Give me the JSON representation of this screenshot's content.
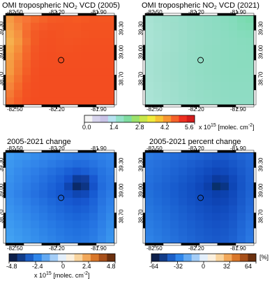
{
  "colors": {
    "frame": "#000000",
    "no2_map_2005": "#ff4f1f",
    "no2_map_2021": "#8fdcc0",
    "change_base": "#2f86ea",
    "pct_base": "#2b6fd8"
  },
  "panels": [
    {
      "title_pre": "OMI tropospheric NO",
      "title_sub": "2",
      "title_post": " VCD (2005)",
      "lon_ticks": [
        "-82.50",
        "-82.20",
        "-81.90"
      ],
      "lat_ticks": [
        "39.30",
        "39.00",
        "38.70"
      ]
    },
    {
      "title_pre": "OMI tropospheric NO",
      "title_sub": "2",
      "title_post": " VCD (2021)",
      "lon_ticks": [
        "-82.50",
        "-82.20",
        "-81.90"
      ],
      "lat_ticks": [
        "39.30",
        "39.00",
        "38.70"
      ]
    },
    {
      "title_pre": "2005-2021 change",
      "title_sub": "",
      "title_post": "",
      "lon_ticks": [
        "-82.50",
        "-82.20",
        "-81.90"
      ],
      "lat_ticks": [
        "39.30",
        "39.00",
        "38.70"
      ]
    },
    {
      "title_pre": "2005-2021 percent change",
      "title_sub": "",
      "title_post": "",
      "lon_ticks": [
        "-82.50",
        "-82.20",
        "-81.90"
      ],
      "lat_ticks": [
        "39.30",
        "39.00",
        "38.70"
      ]
    }
  ],
  "colorbars": {
    "vcd": {
      "ticks": [
        "0.0",
        "1.4",
        "2.8",
        "4.2",
        "5.6"
      ],
      "unit_pre": "x 10",
      "unit_exp": "15",
      "unit_mid": " [molec. cm",
      "unit_exp2": "-2",
      "unit_post": "]",
      "colors": [
        "#f5f5f5",
        "#d6d3ec",
        "#c8c2e6",
        "#b6e2f0",
        "#93e1c8",
        "#7fdca0",
        "#9be26b",
        "#c7e64a",
        "#f1ea3c",
        "#f7c232",
        "#f79532",
        "#f5622a",
        "#ee3020",
        "#d21c1c"
      ]
    },
    "change": {
      "ticks": [
        "-4.8",
        "-2.4",
        "0",
        "2.4",
        "4.8"
      ],
      "unit_pre": "x 10",
      "unit_exp": "15",
      "unit_mid": " [molec. cm",
      "unit_exp2": "-2",
      "unit_post": "]",
      "colors": [
        "#0d1f4a",
        "#123c88",
        "#1b5fc7",
        "#2f86ea",
        "#63a9f2",
        "#a4cdf7",
        "#e3effb",
        "#fbf0de",
        "#f9d49e",
        "#f2a85a",
        "#d9772a",
        "#a8501a",
        "#6b300e"
      ]
    },
    "pct": {
      "ticks": [
        "-64",
        "-32",
        "0",
        "32",
        "64"
      ],
      "unit": "[%]",
      "colors": [
        "#0d1f4a",
        "#123c88",
        "#1b5fc7",
        "#2f86ea",
        "#63a9f2",
        "#a4cdf7",
        "#e3effb",
        "#fbf0de",
        "#f9d49e",
        "#f2a85a",
        "#d9772a",
        "#a8501a",
        "#6b300e"
      ]
    }
  },
  "maps": {
    "vcd_2005": [
      [
        "#f59a44",
        "#f5823a",
        "#f77536",
        "#f56a2c",
        "#f46228",
        "#f45a24",
        "#f45824",
        "#f45722",
        "#f55922",
        "#f45722",
        "#f35421",
        "#f35521",
        "#f35521"
      ],
      [
        "#f5a048",
        "#f58a3d",
        "#f66f30",
        "#f45f28",
        "#f45826",
        "#f35423",
        "#f35422",
        "#f45522",
        "#f45522",
        "#f35321",
        "#f35321",
        "#f35321",
        "#f35321"
      ],
      [
        "#f6a84a",
        "#f59240",
        "#f46c2e",
        "#f35a25",
        "#f35323",
        "#f35121",
        "#f35322",
        "#f35522",
        "#f35522",
        "#f35321",
        "#f35220",
        "#f35220",
        "#f35220"
      ],
      [
        "#f6b04e",
        "#f5983f",
        "#f4722f",
        "#f35a24",
        "#f35122",
        "#f35021",
        "#f35221",
        "#f35322",
        "#f35221",
        "#f35120",
        "#f35020",
        "#f35020",
        "#f35020"
      ],
      [
        "#f6a846",
        "#f58e3a",
        "#f46a2c",
        "#f35624",
        "#f35022",
        "#f34f21",
        "#f35121",
        "#f35121",
        "#f35020",
        "#f34f20",
        "#f34f20",
        "#f34f20",
        "#f34f20"
      ],
      [
        "#f5a044",
        "#f58536",
        "#f4662a",
        "#f35423",
        "#f34f21",
        "#f34e20",
        "#f34f20",
        "#f34f20",
        "#f34f20",
        "#f34e20",
        "#f34e20",
        "#f34e20",
        "#f34e20"
      ],
      [
        "#f59c42",
        "#f47e33",
        "#f46228",
        "#f35223",
        "#f34e21",
        "#f34e20",
        "#f34e20",
        "#f34e20",
        "#f34e20",
        "#f34e20",
        "#f34e20",
        "#f34e20",
        "#f34e20"
      ],
      [
        "#f59a40",
        "#f47a31",
        "#f45e26",
        "#f35022",
        "#f34d20",
        "#f34d20",
        "#f34d20",
        "#f34d20",
        "#f34d20",
        "#f34d20",
        "#f34d20",
        "#f34d20",
        "#f34d20"
      ],
      [
        "#f58e3a",
        "#f4722e",
        "#f35824",
        "#f34f21",
        "#f34d20",
        "#f34d20",
        "#f34d20",
        "#f34d20",
        "#f34d20",
        "#f34d20",
        "#f34d20",
        "#f34d20",
        "#f34d20"
      ],
      [
        "#f5843a",
        "#f46a2a",
        "#f35423",
        "#f34e21",
        "#f34d20",
        "#f34d20",
        "#f34d20",
        "#f34d20",
        "#f34d20",
        "#f34d20",
        "#f34d20",
        "#f34d20",
        "#f34d20"
      ],
      [
        "#f47a34",
        "#f46228",
        "#f35222",
        "#f34e21",
        "#f34d20",
        "#f34d20",
        "#f34d20",
        "#f34d20",
        "#f34d20",
        "#f34d20",
        "#f34d20",
        "#f34d20",
        "#f34d20"
      ],
      [
        "#f47030",
        "#f45c26",
        "#f35022",
        "#f34d20",
        "#f34d20",
        "#f34d20",
        "#f34d20",
        "#f34d20",
        "#f34d20",
        "#f34d20",
        "#f34d20",
        "#f34d20",
        "#f34d20"
      ]
    ],
    "vcd_2021": [
      [
        "#a8e2d3",
        "#a2e0cf",
        "#9fdfcd",
        "#9cdfcb",
        "#98deca",
        "#94ddc7",
        "#92ddc6",
        "#8fdcc4",
        "#8cdcc2",
        "#88dcbf",
        "#84dcbc",
        "#7ddbb4",
        "#78dbae"
      ],
      [
        "#a9e3d4",
        "#a4e1d0",
        "#a0dfcd",
        "#9ddecb",
        "#99deca",
        "#95ddc7",
        "#93ddc5",
        "#90dcc4",
        "#8ddcc2",
        "#8adcc0",
        "#86dcbd",
        "#80dbb7",
        "#7edbb4"
      ],
      [
        "#a9e3d4",
        "#a5e1d1",
        "#a1e0cf",
        "#9edfcc",
        "#9adeca",
        "#96ddc8",
        "#93ddc6",
        "#90dcc4",
        "#8edcc3",
        "#8bdcc1",
        "#88dcbf",
        "#85dcbc",
        "#83dcba"
      ],
      [
        "#aae3d5",
        "#a5e1d2",
        "#a1e0cf",
        "#9edfcc",
        "#9adeca",
        "#96ddc8",
        "#93ddc6",
        "#91dcc4",
        "#8fdcc3",
        "#8cdcc1",
        "#8adcc0",
        "#88dcbe",
        "#87dcbd"
      ],
      [
        "#a9e3d4",
        "#a5e1d1",
        "#a1e0ce",
        "#9edfcc",
        "#9adeca",
        "#96ddc7",
        "#93ddc5",
        "#90dcc3",
        "#8edcc2",
        "#8cdcc1",
        "#8adcc0",
        "#89dcbf",
        "#88dcbe"
      ],
      [
        "#a8e2d3",
        "#a4e1d0",
        "#a0dfcd",
        "#9ddecb",
        "#99deca",
        "#95ddc7",
        "#92ddc5",
        "#90dcc3",
        "#8edcc2",
        "#8cdcc1",
        "#8adcc0",
        "#8adcbf",
        "#89dcbf"
      ],
      [
        "#a7e2d3",
        "#a3e0cf",
        "#9fdfcd",
        "#9cdecb",
        "#98deca",
        "#95ddc7",
        "#92ddc5",
        "#90dcc3",
        "#8edcc2",
        "#8cdcc1",
        "#8bdcc0",
        "#8adcbf",
        "#8adcbf"
      ],
      [
        "#a7e2d3",
        "#a3e0cf",
        "#9fdfcd",
        "#9cdecb",
        "#98deca",
        "#95ddc7",
        "#92ddc5",
        "#90dcc3",
        "#8edcc2",
        "#8cdcc1",
        "#8bdcc0",
        "#8bdcc0",
        "#8bdcc0"
      ],
      [
        "#a8e2d3",
        "#a4e0d0",
        "#a0dfcd",
        "#9ddecb",
        "#99deca",
        "#96ddc8",
        "#93ddc6",
        "#91dcc4",
        "#8fdcc3",
        "#8ddcc2",
        "#8cdcc1",
        "#8cdcc1",
        "#8cdcc1"
      ],
      [
        "#a9e3d4",
        "#a5e1d1",
        "#a1e0ce",
        "#9edfcc",
        "#9adeca",
        "#97ddc8",
        "#94ddc6",
        "#92dcc5",
        "#90dcc4",
        "#8edcc3",
        "#8ddcc2",
        "#8ddcc2",
        "#8ddcc2"
      ],
      [
        "#aae3d5",
        "#a6e1d2",
        "#a2e0cf",
        "#9fdfcd",
        "#9bdecb",
        "#98ddc9",
        "#95ddc7",
        "#93ddc5",
        "#91dcc4",
        "#8fdcc3",
        "#8edcc3",
        "#8edcc3",
        "#8edcc3"
      ],
      [
        "#abe3d6",
        "#a7e2d3",
        "#a3e0d0",
        "#a0dfce",
        "#9cdecc",
        "#99deca",
        "#96ddc8",
        "#94ddc6",
        "#92dcc5",
        "#90dcc4",
        "#8fdcc4",
        "#8fdcc4",
        "#8fdcc4"
      ]
    ],
    "change": [
      [
        "#3f9bf0",
        "#3b95ef",
        "#3a93ee",
        "#368dec",
        "#3488ea",
        "#3284e9",
        "#2f80e7",
        "#2c7ce5",
        "#2a78e3",
        "#2a78e3",
        "#2c7ce5",
        "#2f80e7",
        "#3284e9"
      ],
      [
        "#3c97ef",
        "#3891ed",
        "#358bec",
        "#3286ea",
        "#2f81e8",
        "#2b7be5",
        "#2775e2",
        "#2470df",
        "#206bdc",
        "#226cdd",
        "#2673e1",
        "#2b7be5",
        "#2f81e8"
      ],
      [
        "#3a94ee",
        "#358bec",
        "#3184e9",
        "#2d7ee7",
        "#2977e3",
        "#2470df",
        "#1f69db",
        "#1a60d6",
        "#1858d0",
        "#1a5ed4",
        "#1f68da",
        "#2674e1",
        "#2c7ce5"
      ],
      [
        "#3891ed",
        "#3388ea",
        "#2e80e8",
        "#2a79e4",
        "#2571e0",
        "#1f69db",
        "#1a60d6",
        "#1452cc",
        "#0d3c9a",
        "#123f9e",
        "#1858d0",
        "#2470df",
        "#2a78e3"
      ],
      [
        "#368dec",
        "#3185e9",
        "#2c7ce5",
        "#2774e1",
        "#226cdd",
        "#1c63d8",
        "#165ad2",
        "#0f45b0",
        "#0a2a6a",
        "#0d3584",
        "#1552c9",
        "#226cdd",
        "#2977e3"
      ],
      [
        "#358bec",
        "#2f82e8",
        "#2a79e4",
        "#2571e0",
        "#2069db",
        "#1a61d6",
        "#1558d0",
        "#1250c6",
        "#0f46b2",
        "#1149b9",
        "#175bd2",
        "#2470df",
        "#2b7be5"
      ],
      [
        "#378fed",
        "#3287ea",
        "#2d7fe7",
        "#2877e3",
        "#2370df",
        "#1e68da",
        "#1a61d6",
        "#1759d1",
        "#1554cc",
        "#1757cf",
        "#1c63d8",
        "#2774e1",
        "#2e80e8"
      ],
      [
        "#3993ee",
        "#348cec",
        "#3084e9",
        "#2b7de6",
        "#2676e2",
        "#216fde",
        "#1d68da",
        "#1a62d6",
        "#185dd3",
        "#1a60d5",
        "#1f68da",
        "#2979e4",
        "#3084e9"
      ],
      [
        "#3b97ef",
        "#3690ed",
        "#3289ea",
        "#2d82e8",
        "#287be5",
        "#2474e1",
        "#206ede",
        "#1d69da",
        "#1b65d8",
        "#1d68da",
        "#226fde",
        "#2b7ce5",
        "#3289ea"
      ],
      [
        "#3d9af0",
        "#3894ee",
        "#348deb",
        "#3087e9",
        "#2b80e7",
        "#277ae4",
        "#2374e1",
        "#206fde",
        "#1e6cdc",
        "#206ede",
        "#2574e2",
        "#2d80e7",
        "#348deb"
      ],
      [
        "#409ef1",
        "#3b98ef",
        "#3792ed",
        "#338ceb",
        "#2e85e8",
        "#2a7fe6",
        "#2679e3",
        "#2374e1",
        "#2171df",
        "#2373e0",
        "#2879e4",
        "#3084e9",
        "#3791ed"
      ],
      [
        "#42a1f2",
        "#3d9bf0",
        "#3995ee",
        "#358fec",
        "#3189ea",
        "#2d83e7",
        "#297de5",
        "#2678e2",
        "#2475e1",
        "#2677e2",
        "#2a7de5",
        "#3388ea",
        "#3994ee"
      ]
    ],
    "pct": [
      [
        "#2a79e0",
        "#2874df",
        "#2672de",
        "#246edb",
        "#226ad8",
        "#2066d5",
        "#1e62d2",
        "#1c5ece",
        "#1a5acb",
        "#1a5acb",
        "#1c5ece",
        "#1f64d3",
        "#2269d8"
      ],
      [
        "#2874df",
        "#2670dc",
        "#236cd9",
        "#2067d6",
        "#1e63d3",
        "#1b5ecf",
        "#1959cb",
        "#1654c6",
        "#134fc2",
        "#1450c3",
        "#1757c9",
        "#1c5ece",
        "#2066d5"
      ],
      [
        "#2672de",
        "#236dda",
        "#2068d7",
        "#1d63d3",
        "#1a5ecf",
        "#1758ca",
        "#1452c5",
        "#114cbf",
        "#0f46b8",
        "#1049bb",
        "#1350c3",
        "#195acb",
        "#1f63d3"
      ],
      [
        "#2470dc",
        "#216bd8",
        "#1e65d4",
        "#1b60d0",
        "#175acb",
        "#1454c6",
        "#114dc0",
        "#0e45b6",
        "#0b3a9e",
        "#0c3ea5",
        "#1049bb",
        "#1756c8",
        "#1e62d2"
      ],
      [
        "#236ddb",
        "#1f67d6",
        "#1c62d2",
        "#185cce",
        "#1556c8",
        "#1250c3",
        "#0f48bb",
        "#0c3faa",
        "#08306c",
        "#0a3585",
        "#0e46b6",
        "#1655c7",
        "#1d61d1"
      ],
      [
        "#2270da",
        "#1e69d7",
        "#1b63d3",
        "#185dcf",
        "#1557c9",
        "#1251c4",
        "#0f4bbe",
        "#0d45b6",
        "#0b3fab",
        "#0c42af",
        "#104abc",
        "#1758c9",
        "#1e63d3"
      ],
      [
        "#2473dc",
        "#206cd9",
        "#1d66d5",
        "#1a60d1",
        "#1759cb",
        "#1453c6",
        "#114dc0",
        "#0f48ba",
        "#0e44b4",
        "#0f46b7",
        "#134dbf",
        "#195acb",
        "#2066d5"
      ],
      [
        "#2676de",
        "#2270db",
        "#1f6ad7",
        "#1c64d3",
        "#195ece",
        "#1658ca",
        "#1452c5",
        "#124ec0",
        "#104abc",
        "#114cbe",
        "#1552c5",
        "#1b5ece",
        "#2269d8"
      ],
      [
        "#2879e0",
        "#2473dd",
        "#216dd9",
        "#1e67d5",
        "#1b61d1",
        "#195bcd",
        "#1656c9",
        "#1451c4",
        "#134ec1",
        "#1450c3",
        "#1756c9",
        "#1d62d2",
        "#246ddb"
      ],
      [
        "#2a7ce2",
        "#2676df",
        "#2370db",
        "#206ad7",
        "#1d64d3",
        "#1a5fcf",
        "#185acb",
        "#1655c7",
        "#1552c5",
        "#1654c6",
        "#195acb",
        "#1f66d5",
        "#2671de"
      ],
      [
        "#2c7fe4",
        "#2879e0",
        "#2573dd",
        "#226dd9",
        "#1f67d5",
        "#1c62d1",
        "#1a5dcd",
        "#1859ca",
        "#1756c8",
        "#1858c9",
        "#1b5ece",
        "#2169d8",
        "#2874e0"
      ],
      [
        "#2e82e6",
        "#2a7ce2",
        "#2776de",
        "#2470db",
        "#216ad7",
        "#1e65d3",
        "#1c60cf",
        "#1a5ccc",
        "#1959ca",
        "#1a5bcc",
        "#1d61d1",
        "#236cda",
        "#2a77e2"
      ]
    ]
  }
}
